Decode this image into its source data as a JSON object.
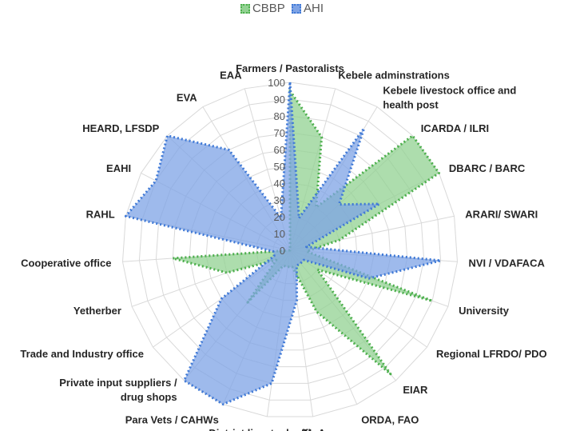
{
  "chart_data": {
    "type": "radar",
    "title": "",
    "categories": [
      "Farmers / Pastoralists",
      "Kebele adminstrations",
      "Kebele livestock office and health post",
      "ICARDA / ILRI",
      "DBARC / BARC",
      "ARARI/ SWARI",
      "NVI / VDAFACA",
      "University",
      "Regional LFRDO/ PDO",
      "EIAR",
      "ORDA, FAO",
      "MoA",
      "District livestock office",
      "Para Vets / CAHWs",
      "Private input suppliers / drug shops",
      "Trade and Industry office",
      "Yetherber",
      "Cooperative office",
      "RAHL",
      "EAHI",
      "HEARD, LFSDP",
      "EVA",
      "EAA"
    ],
    "series": [
      {
        "name": "CBBP",
        "values": [
          95,
          70,
          30,
          100,
          100,
          30,
          10,
          90,
          20,
          95,
          40,
          10,
          10,
          10,
          40,
          10,
          40,
          70,
          0,
          0,
          0,
          0,
          0
        ],
        "color": "#4caf4c",
        "fill": "#92d292"
      },
      {
        "name": "AHI",
        "values": [
          100,
          20,
          85,
          40,
          60,
          10,
          90,
          50,
          10,
          10,
          10,
          30,
          80,
          100,
          100,
          50,
          10,
          10,
          100,
          90,
          100,
          70,
          20
        ],
        "color": "#3f79d6",
        "fill": "#7ea3e5"
      }
    ],
    "rlim": [
      0,
      100
    ],
    "ticks": [
      "0",
      "10",
      "20",
      "30",
      "40",
      "50",
      "60",
      "70",
      "80",
      "90",
      "100"
    ],
    "legend_position": "top"
  }
}
